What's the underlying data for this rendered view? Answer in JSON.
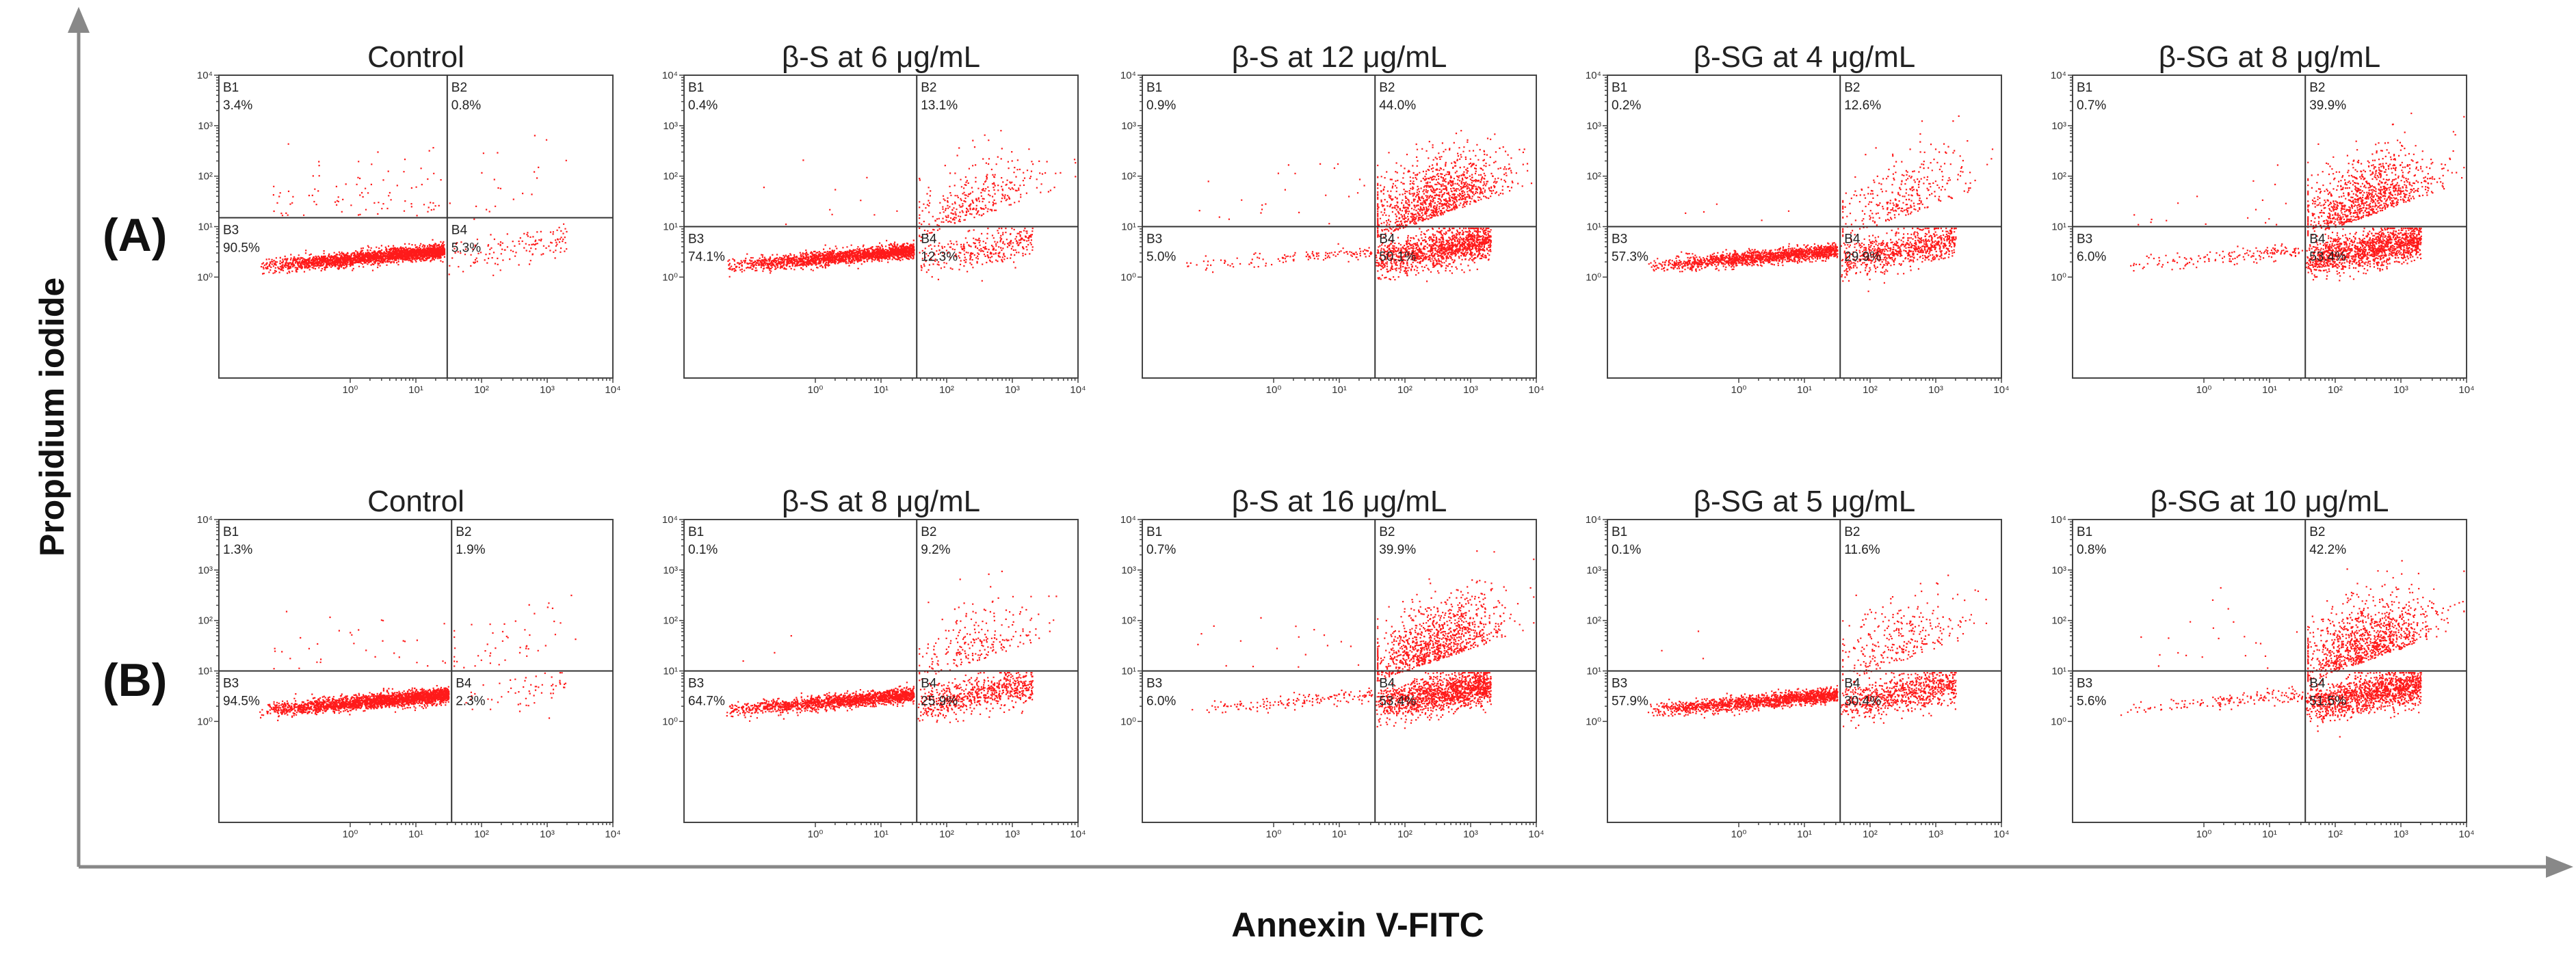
{
  "figure": {
    "xlabel": "Annexin V-FITC",
    "ylabel": "Propidium iodide",
    "colors": {
      "dots": "#ff1a1a",
      "frame": "#444444",
      "axis_arrow": "#888888"
    }
  },
  "chart_data": [
    {
      "type": "scatter",
      "row": "(A)",
      "title": "Control",
      "xlabel": "Annexin V-FITC",
      "ylabel": "Propidium iodide",
      "x_scale": "log",
      "y_scale": "log",
      "xlim": [
        0.01,
        10000
      ],
      "ylim": [
        0.01,
        10000
      ],
      "x_ticks": [
        "10⁰",
        "10¹",
        "10²",
        "10³",
        "10⁴"
      ],
      "y_ticks": [
        "10⁰",
        "10¹",
        "10²",
        "10³",
        "10⁴"
      ],
      "x_gate": 30,
      "y_gate": 15,
      "quadrants": {
        "B1": "3.4%",
        "B2": "0.8%",
        "B3": "90.5%",
        "B4": "5.3%"
      }
    },
    {
      "type": "scatter",
      "row": "(A)",
      "title": "β-S at 6 μg/mL",
      "xlabel": "Annexin V-FITC",
      "ylabel": "Propidium iodide",
      "x_scale": "log",
      "y_scale": "log",
      "xlim": [
        0.01,
        10000
      ],
      "ylim": [
        0.01,
        10000
      ],
      "x_ticks": [
        "10⁰",
        "10¹",
        "10²",
        "10³",
        "10⁴"
      ],
      "y_ticks": [
        "10⁰",
        "10¹",
        "10²",
        "10³",
        "10⁴"
      ],
      "x_gate": 35,
      "y_gate": 10,
      "quadrants": {
        "B1": "0.4%",
        "B2": "13.1%",
        "B3": "74.1%",
        "B4": "12.3%"
      }
    },
    {
      "type": "scatter",
      "row": "(A)",
      "title": "β-S at 12 μg/mL",
      "xlabel": "Annexin V-FITC",
      "ylabel": "Propidium iodide",
      "x_scale": "log",
      "y_scale": "log",
      "xlim": [
        0.01,
        10000
      ],
      "ylim": [
        0.01,
        10000
      ],
      "x_ticks": [
        "10⁰",
        "10¹",
        "10²",
        "10³",
        "10⁴"
      ],
      "y_ticks": [
        "10⁰",
        "10¹",
        "10²",
        "10³",
        "10⁴"
      ],
      "x_gate": 35,
      "y_gate": 10,
      "quadrants": {
        "B1": "0.9%",
        "B2": "44.0%",
        "B3": "5.0%",
        "B4": "50.1%"
      }
    },
    {
      "type": "scatter",
      "row": "(A)",
      "title": "β-SG at 4 μg/mL",
      "xlabel": "Annexin V-FITC",
      "ylabel": "Propidium iodide",
      "x_scale": "log",
      "y_scale": "log",
      "xlim": [
        0.01,
        10000
      ],
      "ylim": [
        0.01,
        10000
      ],
      "x_ticks": [
        "10⁰",
        "10¹",
        "10²",
        "10³",
        "10⁴"
      ],
      "y_ticks": [
        "10⁰",
        "10¹",
        "10²",
        "10³",
        "10⁴"
      ],
      "x_gate": 35,
      "y_gate": 10,
      "quadrants": {
        "B1": "0.2%",
        "B2": "12.6%",
        "B3": "57.3%",
        "B4": "29.9%"
      }
    },
    {
      "type": "scatter",
      "row": "(A)",
      "title": "β-SG at 8 μg/mL",
      "xlabel": "Annexin V-FITC",
      "ylabel": "Propidium iodide",
      "x_scale": "log",
      "y_scale": "log",
      "xlim": [
        0.01,
        10000
      ],
      "ylim": [
        0.01,
        10000
      ],
      "x_ticks": [
        "10⁰",
        "10¹",
        "10²",
        "10³",
        "10⁴"
      ],
      "y_ticks": [
        "10⁰",
        "10¹",
        "10²",
        "10³",
        "10⁴"
      ],
      "x_gate": 35,
      "y_gate": 10,
      "quadrants": {
        "B1": "0.7%",
        "B2": "39.9%",
        "B3": "6.0%",
        "B4": "53.4%"
      }
    },
    {
      "type": "scatter",
      "row": "(B)",
      "title": "Control",
      "xlabel": "Annexin V-FITC",
      "ylabel": "Propidium iodide",
      "x_scale": "log",
      "y_scale": "log",
      "xlim": [
        0.01,
        10000
      ],
      "ylim": [
        0.01,
        10000
      ],
      "x_ticks": [
        "10⁰",
        "10¹",
        "10²",
        "10³",
        "10⁴"
      ],
      "y_ticks": [
        "10⁰",
        "10¹",
        "10²",
        "10³",
        "10⁴"
      ],
      "x_gate": 35,
      "y_gate": 10,
      "quadrants": {
        "B1": "1.3%",
        "B2": "1.9%",
        "B3": "94.5%",
        "B4": "2.3%"
      }
    },
    {
      "type": "scatter",
      "row": "(B)",
      "title": "β-S at 8 μg/mL",
      "xlabel": "Annexin V-FITC",
      "ylabel": "Propidium iodide",
      "x_scale": "log",
      "y_scale": "log",
      "xlim": [
        0.01,
        10000
      ],
      "ylim": [
        0.01,
        10000
      ],
      "x_ticks": [
        "10⁰",
        "10¹",
        "10²",
        "10³",
        "10⁴"
      ],
      "y_ticks": [
        "10⁰",
        "10¹",
        "10²",
        "10³",
        "10⁴"
      ],
      "x_gate": 35,
      "y_gate": 10,
      "quadrants": {
        "B1": "0.1%",
        "B2": "9.2%",
        "B3": "64.7%",
        "B4": "25.9%"
      }
    },
    {
      "type": "scatter",
      "row": "(B)",
      "title": "β-S at 16 μg/mL",
      "xlabel": "Annexin V-FITC",
      "ylabel": "Propidium iodide",
      "x_scale": "log",
      "y_scale": "log",
      "xlim": [
        0.01,
        10000
      ],
      "ylim": [
        0.01,
        10000
      ],
      "x_ticks": [
        "10⁰",
        "10¹",
        "10²",
        "10³",
        "10⁴"
      ],
      "y_ticks": [
        "10⁰",
        "10¹",
        "10²",
        "10³",
        "10⁴"
      ],
      "x_gate": 35,
      "y_gate": 10,
      "quadrants": {
        "B1": "0.7%",
        "B2": "39.9%",
        "B3": "6.0%",
        "B4": "53.4%"
      }
    },
    {
      "type": "scatter",
      "row": "(B)",
      "title": "β-SG at 5 μg/mL",
      "xlabel": "Annexin V-FITC",
      "ylabel": "Propidium iodide",
      "x_scale": "log",
      "y_scale": "log",
      "xlim": [
        0.01,
        10000
      ],
      "ylim": [
        0.01,
        10000
      ],
      "x_ticks": [
        "10⁰",
        "10¹",
        "10²",
        "10³",
        "10⁴"
      ],
      "y_ticks": [
        "10⁰",
        "10¹",
        "10²",
        "10³",
        "10⁴"
      ],
      "x_gate": 35,
      "y_gate": 10,
      "quadrants": {
        "B1": "0.1%",
        "B2": "11.6%",
        "B3": "57.9%",
        "B4": "30.4%"
      }
    },
    {
      "type": "scatter",
      "row": "(B)",
      "title": "β-SG at 10 μg/mL",
      "xlabel": "Annexin V-FITC",
      "ylabel": "Propidium iodide",
      "x_scale": "log",
      "y_scale": "log",
      "xlim": [
        0.01,
        10000
      ],
      "ylim": [
        0.01,
        10000
      ],
      "x_ticks": [
        "10⁰",
        "10¹",
        "10²",
        "10³",
        "10⁴"
      ],
      "y_ticks": [
        "10⁰",
        "10¹",
        "10²",
        "10³",
        "10⁴"
      ],
      "x_gate": 35,
      "y_gate": 10,
      "quadrants": {
        "B1": "0.8%",
        "B2": "42.2%",
        "B3": "5.6%",
        "B4": "51.5%"
      }
    }
  ]
}
